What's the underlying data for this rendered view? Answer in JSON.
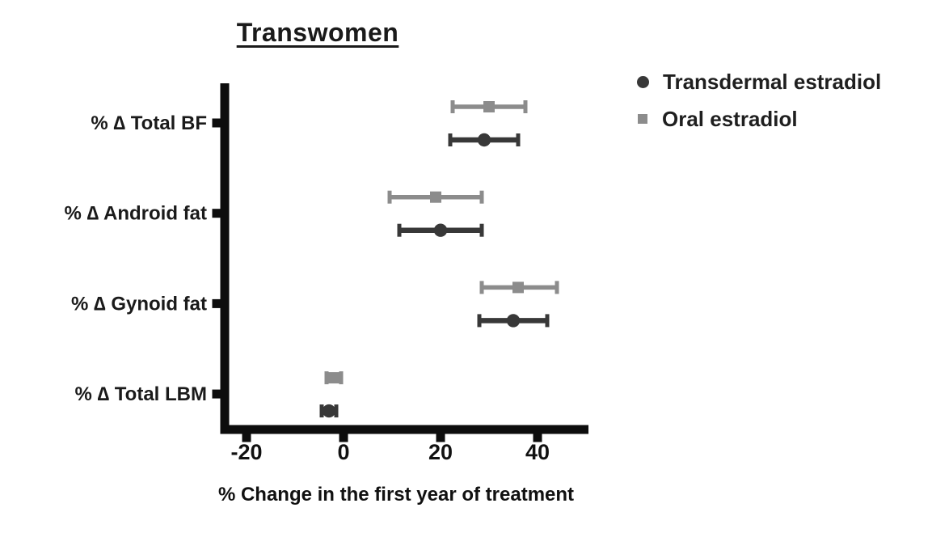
{
  "chart_data": {
    "type": "scatter",
    "subtype": "horizontal-point-estimates-with-error-bars",
    "title": "Transwomen",
    "xlabel": "% Change in the first year of treatment",
    "ylabel": "",
    "xlim": [
      -25,
      50
    ],
    "xticks": [
      -20,
      0,
      20,
      40
    ],
    "grid": false,
    "legend_position": "top-right",
    "categories": [
      "% ∆ Total BF",
      "% ∆ Android fat",
      "% ∆ Gynoid fat",
      "% ∆ Total LBM"
    ],
    "series": [
      {
        "name": "Transdermal estradiol",
        "marker": "circle",
        "color": "#383838",
        "values": [
          29,
          20,
          35,
          -3
        ],
        "ci_low": [
          22,
          11.5,
          28,
          -4.5
        ],
        "ci_high": [
          36,
          28.5,
          42,
          -1.5
        ]
      },
      {
        "name": "Oral estradiol",
        "marker": "square",
        "color": "#8c8c8c",
        "values": [
          30,
          19,
          36,
          -2
        ],
        "ci_low": [
          22.5,
          9.5,
          28.5,
          -3.5
        ],
        "ci_high": [
          37.5,
          28.5,
          44,
          -0.5
        ]
      }
    ],
    "axis_color": "#0d0d0d",
    "text_color": "#1a1a1a"
  }
}
